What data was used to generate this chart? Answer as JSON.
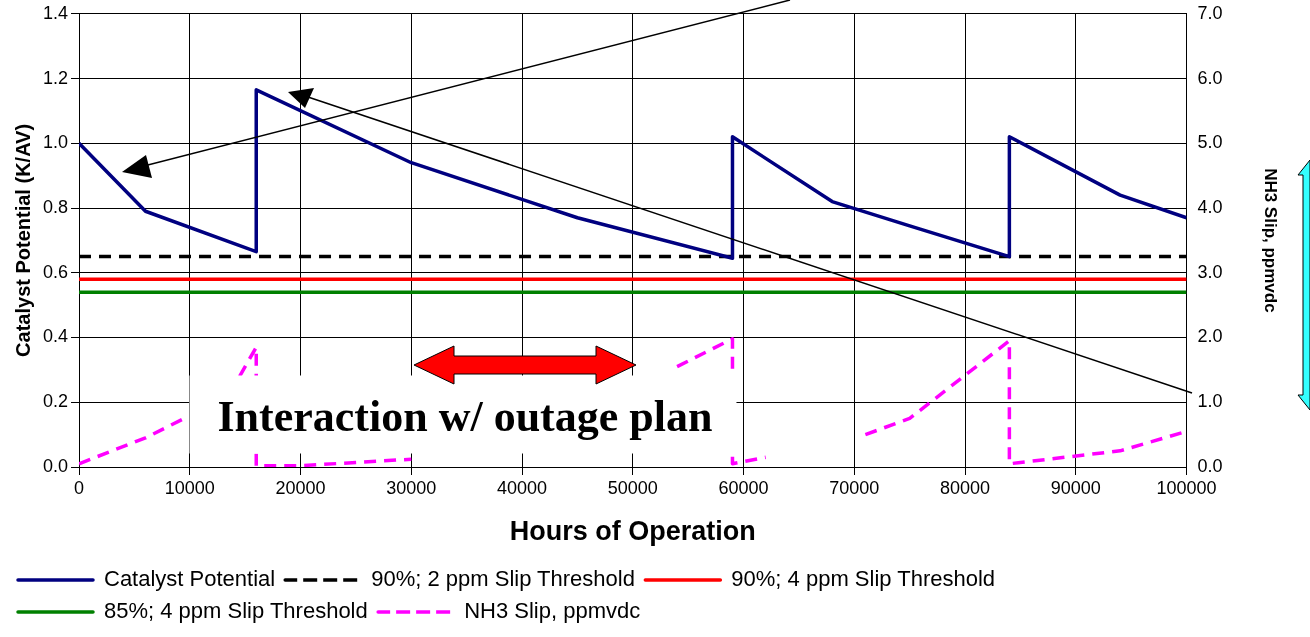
{
  "chart_data": {
    "type": "line",
    "xlabel": "Hours of Operation",
    "ylabel": "Catalyst Potential (K/AV)",
    "y2label": "NH3 Slip, ppmvdc",
    "xlim": [
      0,
      100000
    ],
    "xticks": [
      0,
      10000,
      20000,
      30000,
      40000,
      50000,
      60000,
      70000,
      80000,
      90000,
      100000
    ],
    "ylim": [
      0,
      1.4
    ],
    "yticks": [
      {
        "value": 0,
        "label": "0.0"
      },
      0.2,
      0.4,
      0.6,
      0.8,
      {
        "value": 1,
        "label": "1.0"
      },
      1.2,
      1.4
    ],
    "y2lim": [
      0,
      7
    ],
    "y2ticks": [
      {
        "value": 0,
        "label": "0.0"
      },
      {
        "value": 1,
        "label": "1.0"
      },
      {
        "value": 2,
        "label": "2.0"
      },
      {
        "value": 3,
        "label": "3.0"
      },
      {
        "value": 4,
        "label": "4.0"
      },
      {
        "value": 5,
        "label": "5.0"
      },
      {
        "value": 6,
        "label": "6.0"
      },
      {
        "value": 7,
        "label": "7.0"
      }
    ],
    "grid": true,
    "legend": "bottom",
    "marker": "none",
    "annotations": [
      "Interaction w/ outage plan"
    ],
    "series": [
      {
        "name": "Catalyst Potential",
        "color": "#000080",
        "line_style": "solid",
        "x": [
          0,
          6000,
          16000,
          16000,
          30000,
          45000,
          59000,
          59000,
          68000,
          75000,
          84000,
          84000,
          94000,
          100000
        ],
        "values": [
          1.0,
          0.79,
          0.665,
          1.165,
          0.94,
          0.77,
          0.645,
          1.02,
          0.82,
          0.745,
          0.65,
          1.02,
          0.84,
          0.77
        ]
      },
      {
        "name": "90%; 2 ppm Slip Threshold",
        "color": "#000000",
        "line_style": "dashed",
        "x": [
          0,
          100000
        ],
        "values": [
          0.65,
          0.65
        ]
      },
      {
        "name": "90%; 4 ppm Slip Threshold",
        "color": "#ff0000",
        "line_style": "solid",
        "x": [
          0,
          100000
        ],
        "values": [
          0.58,
          0.58
        ]
      },
      {
        "name": "85%; 4 ppm Slip Threshold",
        "color": "#008000",
        "line_style": "solid",
        "x": [
          0,
          100000
        ],
        "values": [
          0.54,
          0.54
        ]
      },
      {
        "name": "NH3 Slip, ppmvdc",
        "color": "#ff00ff",
        "line_style": "dashed",
        "axis": "y2",
        "x": [
          0,
          6000,
          9500,
          12000,
          14500,
          16000,
          16000,
          20000,
          30000,
          40000,
          54000,
          59000,
          59000,
          62000,
          65000,
          71000,
          75000,
          84000,
          84000,
          94000,
          100000
        ],
        "values": [
          0.05,
          0.45,
          0.75,
          null,
          1.4,
          1.85,
          0.02,
          0.02,
          0.12,
          null,
          1.55,
          1.98,
          0.05,
          0.15,
          null,
          0.5,
          0.75,
          1.95,
          0.05,
          0.25,
          0.55
        ]
      }
    ]
  }
}
